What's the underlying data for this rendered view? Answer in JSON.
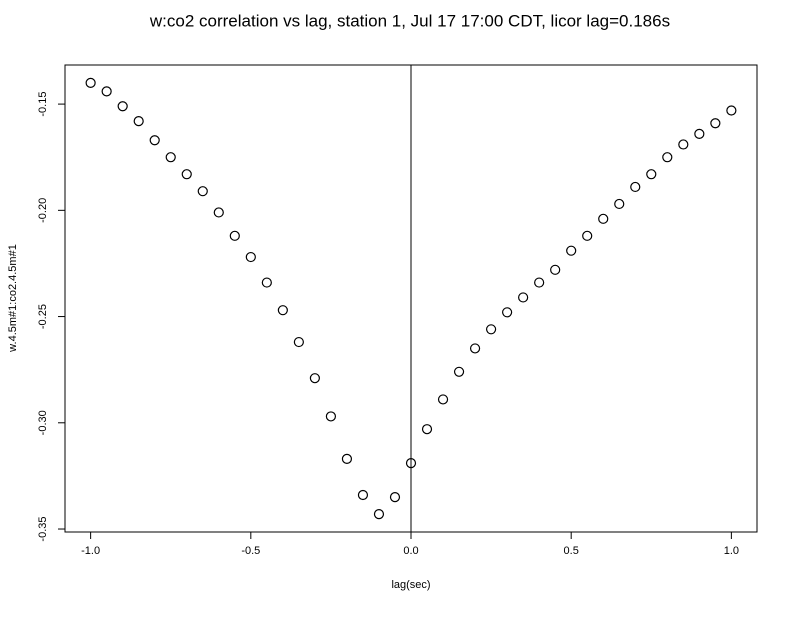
{
  "chart_data": {
    "type": "scatter",
    "title": "w:co2 correlation vs lag, station 1, Jul 17 17:00 CDT, licor lag=0.186s",
    "x_label": "lag(sec)",
    "y_label": "w.4.5m#1:co2.4.5m#1",
    "x": [
      -1.0,
      -0.95,
      -0.9,
      -0.85,
      -0.8,
      -0.75,
      -0.7,
      -0.65,
      -0.6,
      -0.55,
      -0.5,
      -0.45,
      -0.4,
      -0.35,
      -0.3,
      -0.25,
      -0.2,
      -0.15,
      -0.1,
      -0.05,
      0.0,
      0.05,
      0.1,
      0.15,
      0.2,
      0.25,
      0.3,
      0.35,
      0.4,
      0.45,
      0.5,
      0.55,
      0.6,
      0.65,
      0.7,
      0.75,
      0.8,
      0.85,
      0.9,
      0.95,
      1.0
    ],
    "values": [
      -0.14,
      -0.144,
      -0.151,
      -0.158,
      -0.167,
      -0.175,
      -0.183,
      -0.191,
      -0.201,
      -0.212,
      -0.222,
      -0.234,
      -0.247,
      -0.262,
      -0.279,
      -0.297,
      -0.317,
      -0.334,
      -0.343,
      -0.335,
      -0.319,
      -0.303,
      -0.289,
      -0.276,
      -0.265,
      -0.256,
      -0.248,
      -0.241,
      -0.234,
      -0.228,
      -0.219,
      -0.212,
      -0.204,
      -0.197,
      -0.189,
      -0.183,
      -0.175,
      -0.169,
      -0.164,
      -0.159,
      -0.153
    ],
    "color": "#000000",
    "xlim": [
      -1.08,
      1.08
    ],
    "ylim": [
      -0.3514,
      -0.1316
    ],
    "xticks": [
      {
        "value": -1.0,
        "label": "-1.0"
      },
      -0.5,
      {
        "value": 0,
        "label": "0.0"
      },
      0.5,
      {
        "value": 1.0,
        "label": "1.0"
      }
    ],
    "yticks": [
      -0.15,
      {
        "value": -0.2,
        "label": "-0.20"
      },
      -0.25,
      {
        "value": -0.3,
        "label": "-0.30"
      },
      -0.35
    ],
    "vline": 0
  }
}
